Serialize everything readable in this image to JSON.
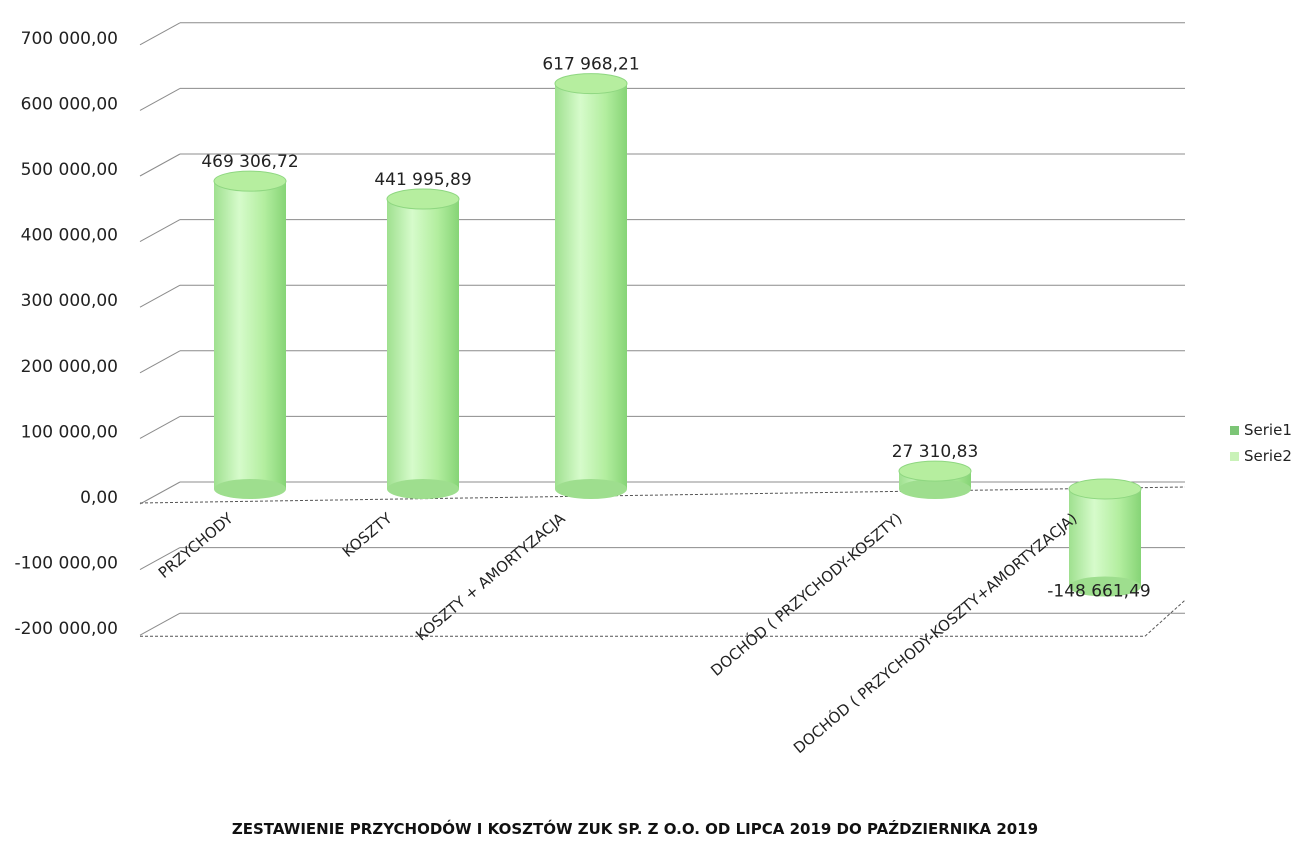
{
  "chart_data": {
    "type": "bar",
    "style": "3d-cylinder",
    "categories": [
      "PRZYCHODY",
      "KOSZTY",
      "KOSZTY + AMORTYZACJA",
      "DOCHÓD ( PRZYCHODY-KOSZTY)",
      "DOCHÓD ( PRZYCHODY-KOSZTY+AMORTYZACJA)"
    ],
    "values": [
      469306.72,
      441995.89,
      617968.21,
      27310.83,
      -148661.49
    ],
    "value_labels": [
      "469 306,72",
      "441 995,89",
      "617 968,21",
      "27 310,83",
      "-148 661,49"
    ],
    "negative_label_color": "#f08080",
    "y_ticks": [
      {
        "value": 700000,
        "label": "700 000,00"
      },
      {
        "value": 600000,
        "label": "600 000,00"
      },
      {
        "value": 500000,
        "label": "500 000,00"
      },
      {
        "value": 400000,
        "label": "400 000,00"
      },
      {
        "value": 300000,
        "label": "300 000,00"
      },
      {
        "value": 200000,
        "label": "200 000,00"
      },
      {
        "value": 100000,
        "label": "100 000,00"
      },
      {
        "value": 0,
        "label": "0,00"
      },
      {
        "value": -100000,
        "label": "-100 000,00"
      },
      {
        "value": -200000,
        "label": "-200 000,00"
      }
    ],
    "ylim": [
      -200000,
      700000
    ],
    "grid": true,
    "legend": {
      "position": "right",
      "entries": [
        {
          "label": "Serie1",
          "color": "#7cc576"
        },
        {
          "label": "Serie2",
          "color": "#c9f2b8"
        }
      ]
    },
    "bar_colors": {
      "light": "#c8f5bc",
      "mid": "#a7e99a",
      "dark": "#7fcf72"
    },
    "caption": "ZESTAWIENIE PRZYCHODÓW I KOSZTÓW ZUK SP. Z O.O. OD LIPCA 2019  DO PAŹDZIERNIKA 2019"
  }
}
